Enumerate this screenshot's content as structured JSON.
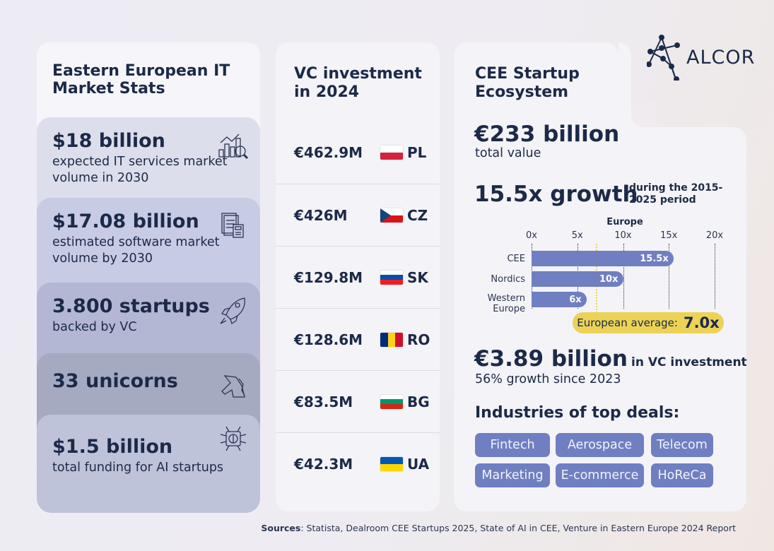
{
  "brand": {
    "name": "ALCOR"
  },
  "left": {
    "title": "Eastern European IT Market Stats",
    "cards": [
      {
        "value": "$18 billion",
        "desc": "expected IT services market volume in 2030",
        "icon": "chart-magnifier-icon",
        "color": "#dcdeeb"
      },
      {
        "value": "$17.08 billion",
        "desc": "estimated software market volume by 2030",
        "icon": "document-calculator-icon",
        "color": "#c8cbe4"
      },
      {
        "value": "3.800 startups",
        "desc": "backed by VC",
        "icon": "rocket-icon",
        "color": "#b4b7d4"
      },
      {
        "value": "33 unicorns",
        "desc": "",
        "icon": "unicorn-icon",
        "color": "#a6aac0"
      },
      {
        "value": "$1.5 billion",
        "desc": "total funding for AI startups",
        "icon": "ai-brain-icon",
        "color": "#bfc3d9"
      }
    ]
  },
  "middle": {
    "title": "VC investment in 2024",
    "rows": [
      {
        "amount": "€462.9M",
        "code": "PL"
      },
      {
        "amount": "€426M",
        "code": "CZ"
      },
      {
        "amount": "€129.8M",
        "code": "SK"
      },
      {
        "amount": "€128.6M",
        "code": "RO"
      },
      {
        "amount": "€83.5M",
        "code": "BG"
      },
      {
        "amount": "€42.3M",
        "code": "UA"
      }
    ]
  },
  "right": {
    "title": "CEE Startup Ecosystem",
    "total_value": "€233 billion",
    "total_label": "total value",
    "growth": "15.5x growth",
    "growth_note": "during the 2015-2025 period",
    "avg_label": "European average:",
    "avg_value": "7.0x",
    "vc": "€3.89 billion",
    "vc_label": "in VC investment",
    "vc_growth": "56% growth since 2023",
    "industries_title": "Industries of top deals:",
    "industries": [
      "Fintech",
      "Aerospace",
      "Telecom",
      "Marketing",
      "E-commerce",
      "HoReCa"
    ]
  },
  "chart_data": {
    "type": "bar",
    "orientation": "horizontal",
    "title": "Europe",
    "categories": [
      "CEE",
      "Nordics",
      "Western Europe"
    ],
    "values": [
      15.5,
      10,
      6
    ],
    "data_labels": [
      "15.5x",
      "10x",
      "6x"
    ],
    "xlim": [
      0,
      20
    ],
    "xticks": [
      "0x",
      "5x",
      "10x",
      "15x",
      "20x"
    ],
    "reference_line": {
      "label": "European average",
      "value": 7.0
    },
    "bar_color": "#6f7fc1",
    "reference_color": "#ecd257"
  },
  "footer": {
    "label": "Sources",
    "text": ": Statista, Dealroom CEE Startups 2025, State of AI in CEE, Venture in Eastern Europe 2024 Report"
  }
}
